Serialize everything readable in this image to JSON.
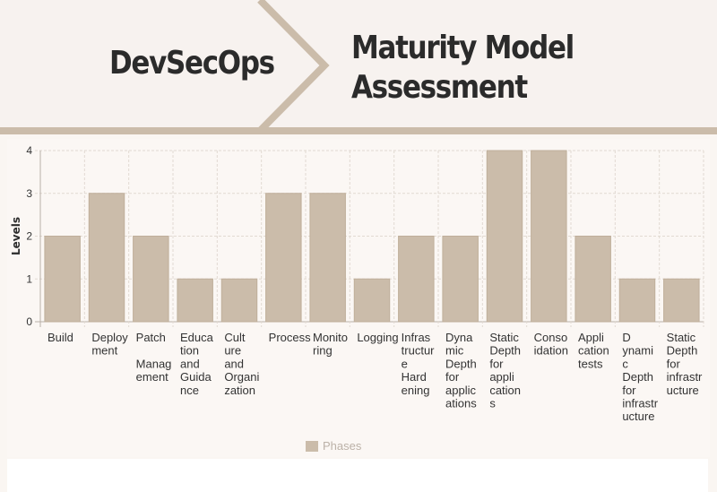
{
  "header": {
    "title_left": "DevSecOps",
    "title_right_line1": "Maturity Model",
    "title_right_line2": "Assessment"
  },
  "colors": {
    "bar": "#cbbcaa",
    "grid": "#e2dad2",
    "accent": "#cbbcaa",
    "text": "#333333"
  },
  "chart_data": {
    "type": "bar",
    "title": "",
    "xlabel": "",
    "ylabel": "Levels",
    "ylim": [
      0,
      4
    ],
    "yticks": [
      0,
      1,
      2,
      3,
      4
    ],
    "grid": true,
    "legend": "bottom",
    "categories": [
      [
        "Build"
      ],
      [
        "Deploy",
        "ment"
      ],
      [
        "Patch",
        "",
        "Manag",
        "ement"
      ],
      [
        "Educa",
        "tion",
        "and",
        "Guida",
        "nce"
      ],
      [
        "Cult",
        "ure",
        "and",
        "Organi",
        "zation"
      ],
      [
        "Process"
      ],
      [
        "Monito",
        "ring"
      ],
      [
        "Logging"
      ],
      [
        "Infras",
        "tructur",
        "e",
        "Hard",
        "ening"
      ],
      [
        "Dyna",
        "mic",
        "Depth",
        "for",
        "applic",
        "ations"
      ],
      [
        "Static",
        "Depth",
        "for",
        "appli",
        "cation",
        "s"
      ],
      [
        "Conso",
        "idation"
      ],
      [
        "Appli",
        "cation",
        "tests"
      ],
      [
        "D",
        "ynami",
        "c",
        "Depth",
        "for",
        "infrastr",
        "ucture"
      ],
      [
        "Static",
        "Depth",
        "for",
        "infrastr",
        "ucture"
      ]
    ],
    "series": [
      {
        "name": "Phases",
        "values": [
          2,
          3,
          2,
          1,
          1,
          3,
          3,
          1,
          2,
          2,
          4,
          4,
          2,
          1,
          1
        ]
      }
    ]
  }
}
